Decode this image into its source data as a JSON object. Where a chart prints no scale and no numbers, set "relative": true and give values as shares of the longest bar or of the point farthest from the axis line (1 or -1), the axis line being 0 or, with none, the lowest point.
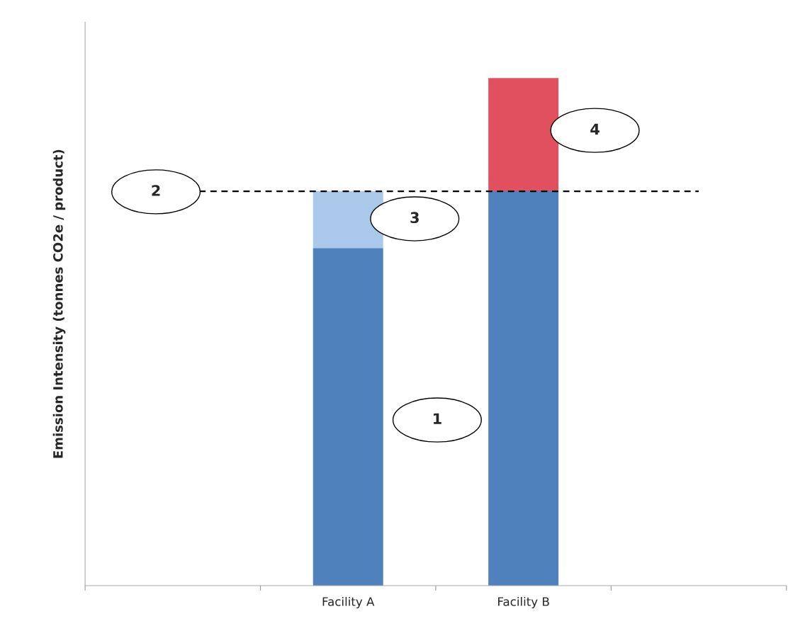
{
  "chart_data": {
    "type": "bar",
    "relative": true,
    "stacked": true,
    "ylabel": "Emission Intensity (tonnes CO2e / product)",
    "categories": [
      null,
      "Facility A",
      "Facility B",
      null
    ],
    "series": [
      {
        "color": "#4f81bd",
        "values": [
          null,
          0.665,
          0.777,
          null
        ]
      },
      {
        "color": "#a9c8ea",
        "values": [
          null,
          0.112,
          null,
          null
        ]
      },
      {
        "color": "#e0505f",
        "values": [
          null,
          null,
          0.223,
          null
        ]
      }
    ],
    "ref_lines": [
      {
        "axis": "y",
        "value": 0.777,
        "color": "#000000",
        "line_style": "dashed"
      }
    ],
    "annotations": [
      "1",
      "2",
      "3",
      "4"
    ],
    "grid": false,
    "legend": false
  }
}
